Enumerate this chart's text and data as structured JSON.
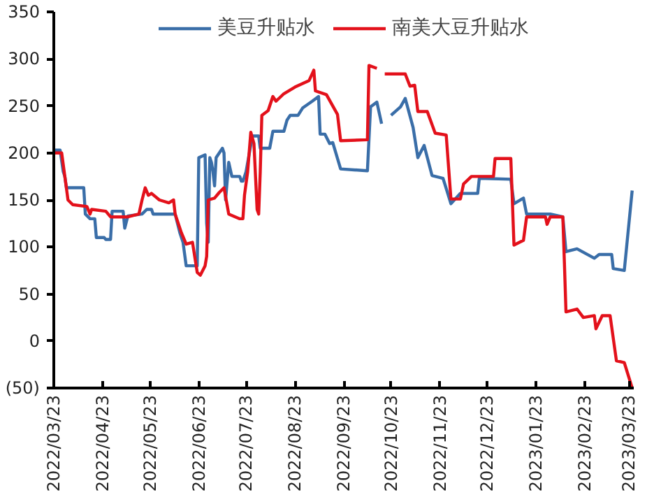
{
  "chart_data": {
    "type": "line",
    "legend": "top",
    "grid": false,
    "marker": "none",
    "line_style": "solid",
    "xlim": [
      "2022-03-23",
      "2023-03-26"
    ],
    "ylim": [
      -50,
      350
    ],
    "yticks": [
      {
        "value": -50,
        "label": "(50)"
      },
      0,
      50,
      100,
      150,
      200,
      250,
      300,
      350
    ],
    "xticks": [
      {
        "value": "2022-03-23",
        "label": "2022/03/23"
      },
      {
        "value": "2022-04-23",
        "label": "2022/04/23"
      },
      {
        "value": "2022-05-23",
        "label": "2022/05/23"
      },
      {
        "value": "2022-06-23",
        "label": "2022/06/23"
      },
      {
        "value": "2022-07-23",
        "label": "2022/07/23"
      },
      {
        "value": "2022-08-23",
        "label": "2022/08/23"
      },
      {
        "value": "2022-09-23",
        "label": "2022/09/23"
      },
      {
        "value": "2022-10-23",
        "label": "2022/10/23"
      },
      {
        "value": "2022-11-23",
        "label": "2022/11/23"
      },
      {
        "value": "2022-12-23",
        "label": "2022/12/23"
      },
      {
        "value": "2023-01-23",
        "label": "2023/01/23"
      },
      {
        "value": "2023-02-23",
        "label": "2023/02/23"
      },
      {
        "value": "2023-03-23",
        "label": "2023/03/23"
      }
    ],
    "series": [
      {
        "name": "美豆升贴水",
        "color": "#3a6ea8",
        "x": [
          "2022-03-23",
          "2022-03-27",
          "2022-03-29",
          "2022-03-30",
          "2022-03-31",
          "2022-04-11",
          "2022-04-12",
          "2022-04-15",
          "2022-04-18",
          "2022-04-19",
          "2022-04-24",
          "2022-04-25",
          "2022-04-28",
          "2022-04-29",
          "2022-05-06",
          "2022-05-07",
          "2022-05-09",
          "2022-05-18",
          "2022-05-21",
          "2022-05-24",
          "2022-05-25",
          "2022-06-08",
          "2022-06-11",
          "2022-06-13",
          "2022-06-15",
          "2022-06-22",
          "2022-06-23",
          "2022-06-27",
          "2022-06-28",
          "2022-06-29",
          "2022-06-30",
          "2022-07-01",
          "2022-07-02",
          "2022-07-03",
          "2022-07-04",
          "2022-07-08",
          "2022-07-09",
          "2022-07-10",
          "2022-07-12",
          "2022-07-14",
          "2022-07-19",
          "2022-07-20",
          "2022-07-21",
          "2022-07-23",
          "2022-07-27",
          "2022-07-31",
          "2022-08-01",
          "2022-08-07",
          "2022-08-09",
          "2022-08-16",
          "2022-08-18",
          "2022-08-20",
          "2022-08-25",
          "2022-08-28",
          "2022-09-03",
          "2022-09-07",
          "2022-09-08",
          "2022-09-11",
          "2022-09-14",
          "2022-09-16",
          "2022-09-21",
          "2022-10-08",
          "2022-10-10",
          "2022-10-14",
          "2022-10-17",
          "2022-10-20",
          "2022-10-23",
          "2022-10-29",
          "2022-11-01",
          "2022-11-06",
          "2022-11-09",
          "2022-11-13",
          "2022-11-18",
          "2022-11-25",
          "2022-11-30",
          "2022-12-06",
          "2022-12-17",
          "2022-12-18",
          "2023-01-07",
          "2023-01-09",
          "2023-01-15",
          "2023-01-17",
          "2023-01-29",
          "2023-02-01",
          "2023-02-09",
          "2023-02-11",
          "2023-02-18",
          "2023-03-01",
          "2023-03-04",
          "2023-03-12",
          "2023-03-13",
          "2023-03-20",
          "2023-03-25"
        ],
        "values": [
          203,
          203,
          180,
          175,
          163,
          163,
          135,
          130,
          130,
          110,
          110,
          108,
          108,
          138,
          138,
          120,
          133,
          135,
          140,
          140,
          135,
          135,
          115,
          105,
          80,
          80,
          195,
          198,
          125,
          105,
          195,
          190,
          180,
          165,
          195,
          205,
          200,
          150,
          190,
          175,
          175,
          170,
          170,
          180,
          218,
          218,
          205,
          205,
          223,
          223,
          235,
          240,
          240,
          248,
          255,
          260,
          220,
          220,
          210,
          211,
          183,
          181,
          249,
          254,
          231,
          null,
          240,
          249,
          258,
          227,
          195,
          208,
          176,
          173,
          146,
          157,
          157,
          173,
          172,
          146,
          152,
          135,
          135,
          135,
          132,
          95,
          98,
          88,
          92,
          92,
          77,
          75,
          160
        ]
      },
      {
        "name": "南美大豆升贴水",
        "color": "#e3111b",
        "x": [
          "2022-03-23",
          "2022-03-28",
          "2022-03-30",
          "2022-04-01",
          "2022-04-04",
          "2022-04-13",
          "2022-04-15",
          "2022-04-16",
          "2022-04-25",
          "2022-04-28",
          "2022-05-09",
          "2022-05-16",
          "2022-05-18",
          "2022-05-20",
          "2022-05-22",
          "2022-05-24",
          "2022-05-29",
          "2022-06-04",
          "2022-06-07",
          "2022-06-08",
          "2022-06-12",
          "2022-06-15",
          "2022-06-19",
          "2022-06-22",
          "2022-06-24",
          "2022-06-27",
          "2022-06-28",
          "2022-06-29",
          "2022-07-03",
          "2022-07-06",
          "2022-07-09",
          "2022-07-12",
          "2022-07-19",
          "2022-07-21",
          "2022-07-22",
          "2022-07-24",
          "2022-07-26",
          "2022-07-28",
          "2022-07-30",
          "2022-07-31",
          "2022-08-01",
          "2022-08-02",
          "2022-08-06",
          "2022-08-09",
          "2022-08-11",
          "2022-08-16",
          "2022-08-23",
          "2022-09-01",
          "2022-09-04",
          "2022-09-05",
          "2022-09-12",
          "2022-09-19",
          "2022-09-21",
          "2022-10-08",
          "2022-10-09",
          "2022-10-14",
          "2022-10-16",
          "2022-10-19",
          "2022-11-01",
          "2022-11-04",
          "2022-11-07",
          "2022-11-09",
          "2022-11-15",
          "2022-11-20",
          "2022-11-27",
          "2022-11-30",
          "2022-12-06",
          "2022-12-08",
          "2022-12-13",
          "2022-12-27",
          "2022-12-28",
          "2023-01-07",
          "2023-01-09",
          "2023-01-15",
          "2023-01-17",
          "2023-01-29",
          "2023-01-30",
          "2023-02-01",
          "2023-02-09",
          "2023-02-10",
          "2023-02-11",
          "2023-02-18",
          "2023-02-22",
          "2023-03-01",
          "2023-03-02",
          "2023-03-06",
          "2023-03-11",
          "2023-03-15",
          "2023-03-20",
          "2023-03-25"
        ],
        "values": [
          200,
          200,
          175,
          150,
          145,
          143,
          135,
          140,
          138,
          132,
          132,
          135,
          150,
          163,
          155,
          157,
          150,
          147,
          150,
          135,
          115,
          103,
          105,
          73,
          70,
          80,
          90,
          150,
          152,
          158,
          163,
          135,
          130,
          130,
          155,
          180,
          222,
          210,
          140,
          135,
          180,
          240,
          245,
          260,
          255,
          263,
          270,
          277,
          288,
          266,
          262,
          241,
          213,
          214,
          293,
          290,
          null,
          284,
          284,
          271,
          272,
          244,
          244,
          221,
          219,
          151,
          151,
          167,
          175,
          175,
          194,
          194,
          102,
          107,
          132,
          132,
          124,
          132,
          132,
          83,
          31,
          34,
          25,
          27,
          13,
          27,
          27,
          -21,
          -23,
          -50
        ]
      }
    ]
  }
}
